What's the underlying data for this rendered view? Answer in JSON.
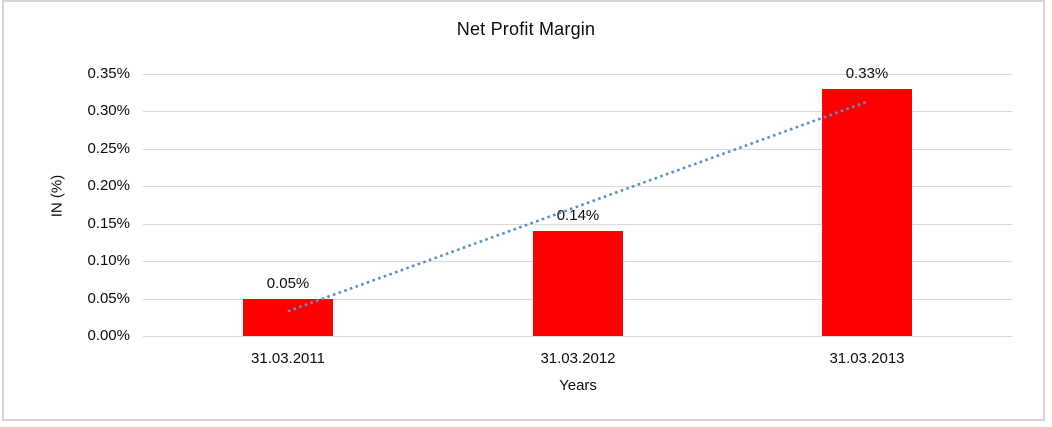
{
  "chart_data": {
    "type": "bar",
    "title": "Net Profit Margin",
    "xlabel": "Years",
    "ylabel": "IN (%)",
    "categories": [
      "31.03.2011",
      "31.03.2012",
      "31.03.2013"
    ],
    "values": [
      0.05,
      0.14,
      0.33
    ],
    "data_labels": [
      "0.05%",
      "0.14%",
      "0.33%"
    ],
    "ylim": [
      0,
      0.35
    ],
    "ytick_step": 0.05,
    "ytick_labels": [
      "0.00%",
      "0.05%",
      "0.10%",
      "0.15%",
      "0.20%",
      "0.25%",
      "0.30%",
      "0.35%"
    ],
    "grid": true,
    "legend": "none",
    "bar_color": "#ff0000",
    "trendline": {
      "type": "linear",
      "style": "dotted",
      "color": "#5b8fc9",
      "start_value": 0.033,
      "end_value": 0.313
    },
    "colors": {
      "gridline": "#d9d9d9",
      "border": "#d6d6d6",
      "text": "#0d0d0d"
    }
  }
}
